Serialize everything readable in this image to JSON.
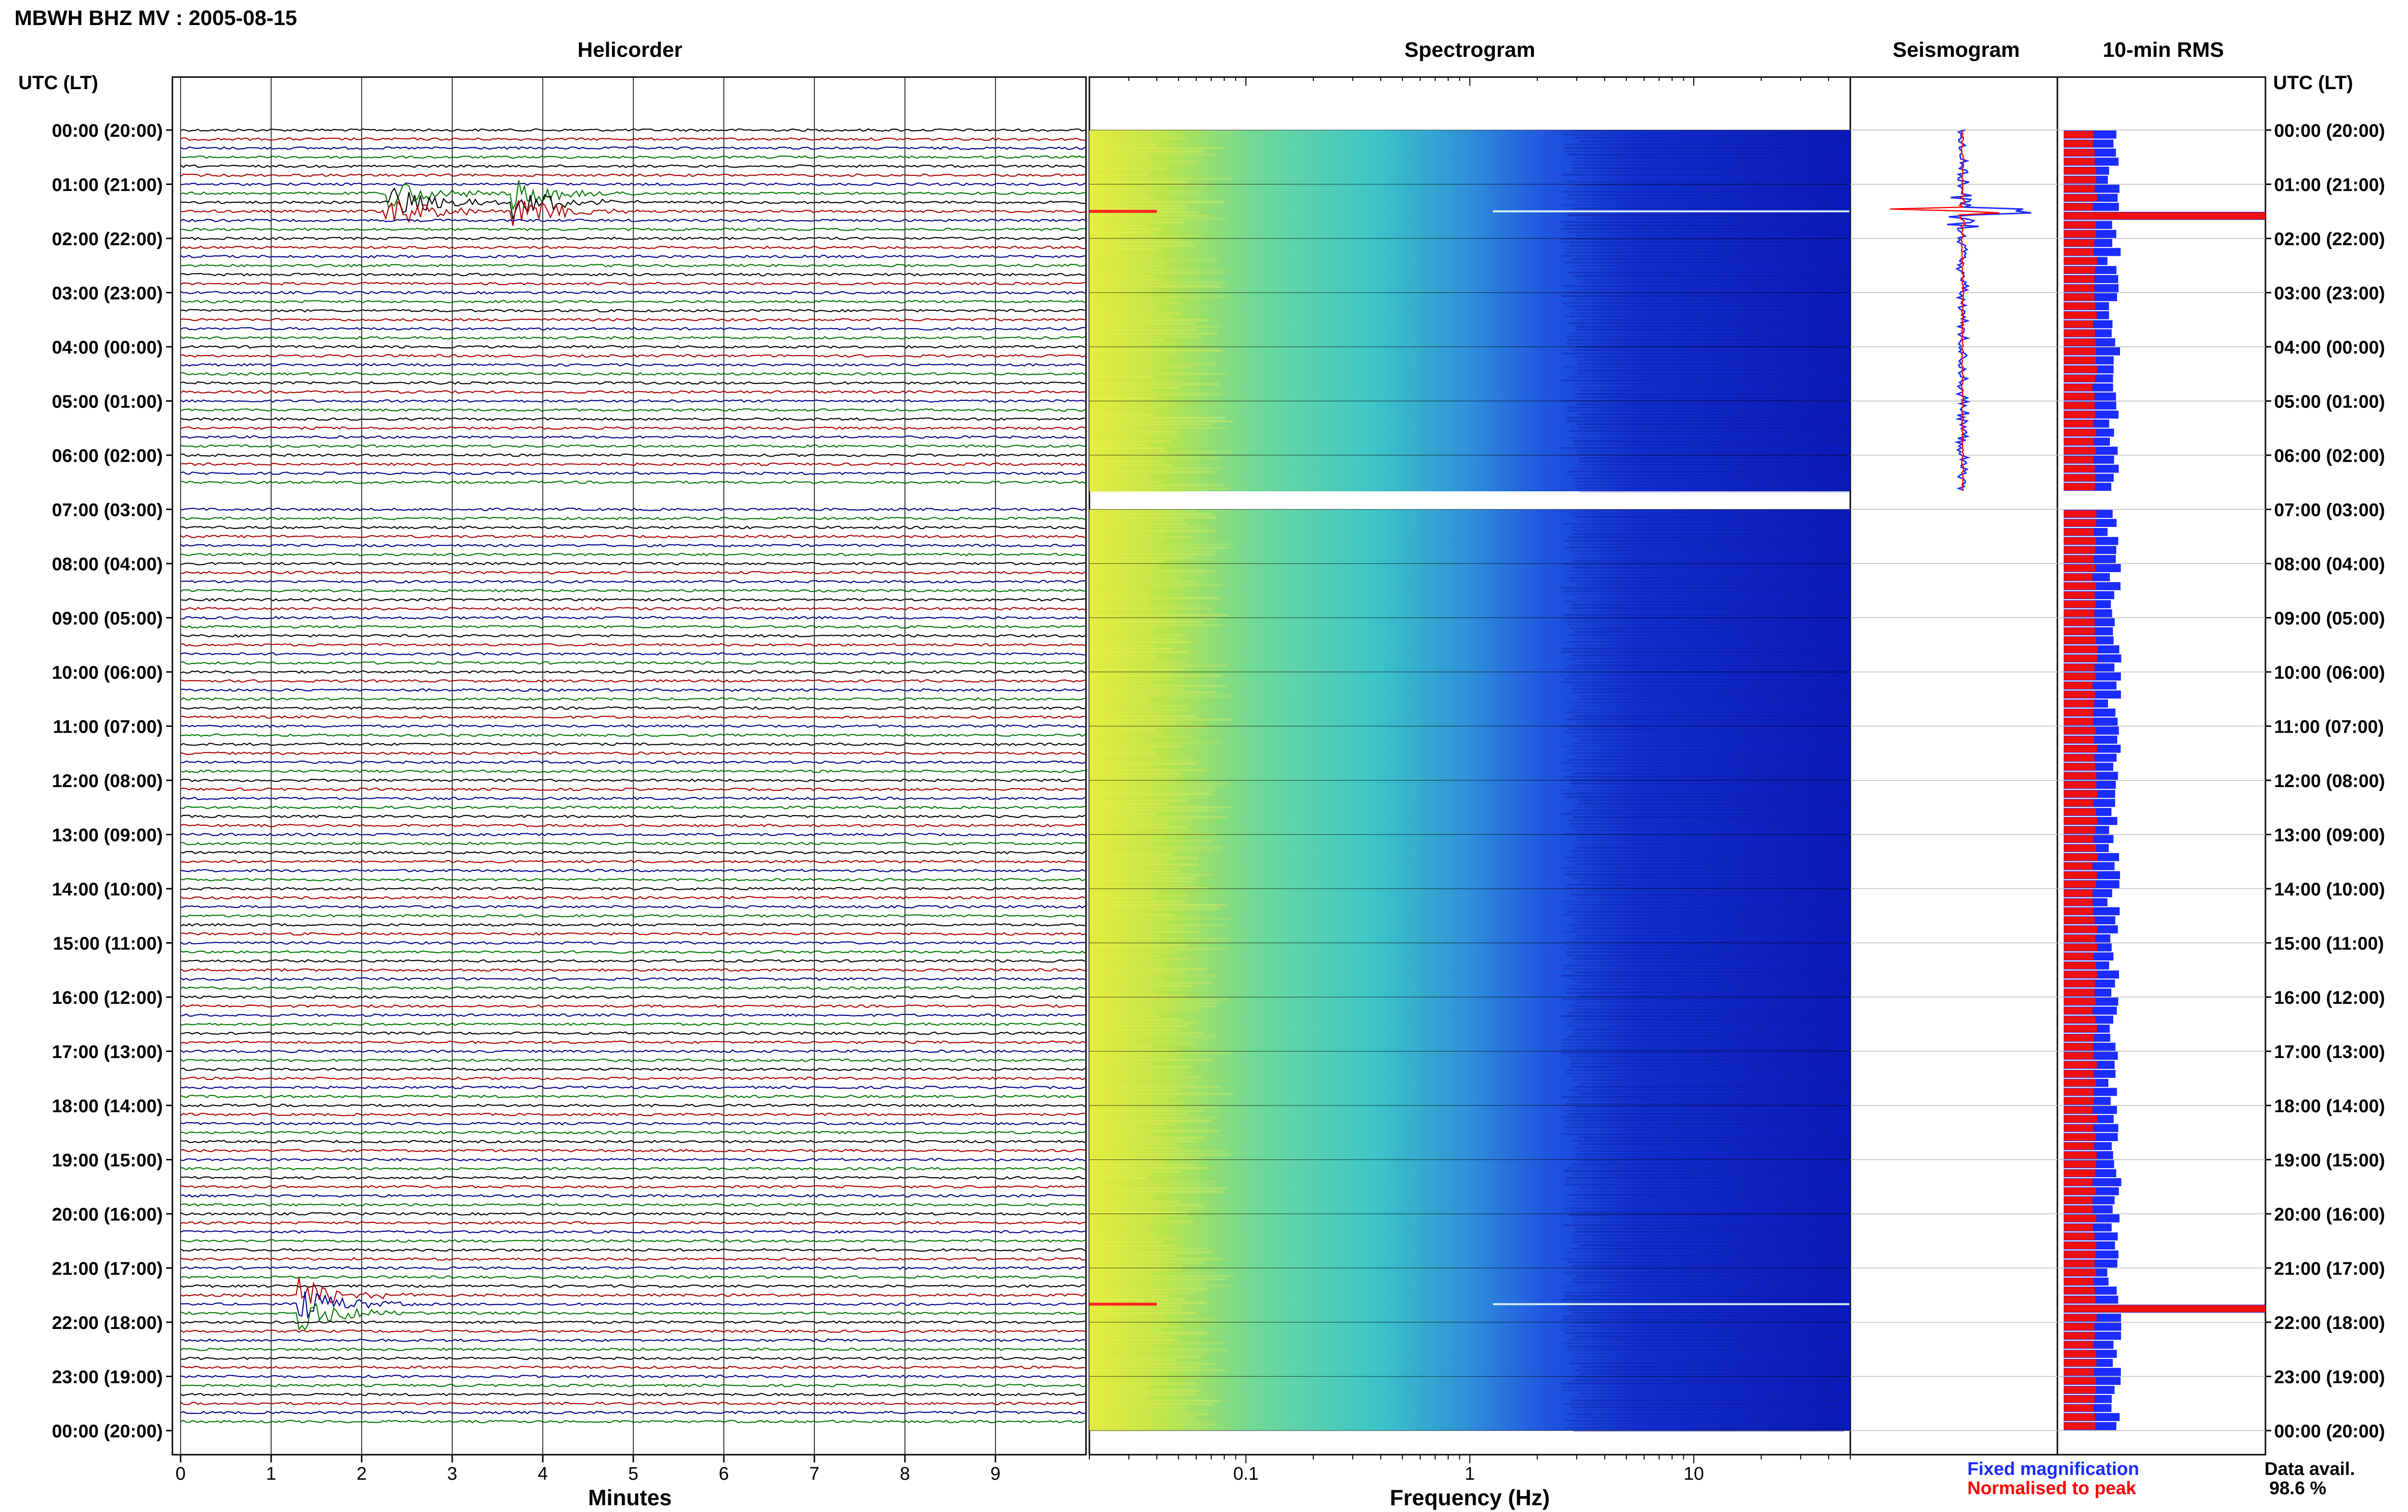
{
  "title": "MBWH BHZ MV : 2005-08-15",
  "panels": {
    "helicorder": "Helicorder",
    "spectrogram": "Spectrogram",
    "seismogram": "Seismogram",
    "rms": "10-min RMS"
  },
  "axis_header": "UTC (LT)",
  "xlabel_minutes": "Minutes",
  "xlabel_frequency": "Frequency (Hz)",
  "legend": {
    "fixed": "Fixed magnification",
    "normalised": "Normalised to peak",
    "fixed_color": "#1a2cff",
    "normalised_color": "#ff0000"
  },
  "availability": {
    "label": "Data avail.",
    "value": "98.6 %"
  },
  "colors": {
    "trace_cycle": [
      "#000000",
      "#b00000",
      "#00008c",
      "#007a00"
    ],
    "spectrogram_low": "#e6ee3a",
    "spectrogram_mid": "#3cc8c8",
    "spectrogram_high": "#0a1ec8"
  },
  "chart_data": [
    {
      "type": "line",
      "name": "helicorder",
      "title": "Helicorder",
      "xlabel": "Minutes",
      "xticks": [
        "0",
        "1",
        "2",
        "3",
        "4",
        "5",
        "6",
        "7",
        "8",
        "9"
      ],
      "xlim": [
        0,
        10
      ],
      "lines_per_hour": 6,
      "data_gap": [
        "06:40",
        "07:00"
      ],
      "hour_labels": [
        "00:00 (20:00)",
        "01:00 (21:00)",
        "02:00 (22:00)",
        "03:00 (23:00)",
        "04:00 (00:00)",
        "05:00 (01:00)",
        "06:00 (02:00)",
        "07:00 (03:00)",
        "08:00 (04:00)",
        "09:00 (05:00)",
        "10:00 (06:00)",
        "11:00 (07:00)",
        "12:00 (08:00)",
        "13:00 (09:00)",
        "14:00 (10:00)",
        "15:00 (11:00)",
        "16:00 (12:00)",
        "17:00 (13:00)",
        "18:00 (14:00)",
        "19:00 (15:00)",
        "20:00 (16:00)",
        "21:00 (17:00)",
        "22:00 (18:00)",
        "23:00 (19:00)",
        "00:00 (20:00)"
      ],
      "events": [
        {
          "time": "01:20",
          "minute": 2.3,
          "note": "large event"
        },
        {
          "time": "01:20",
          "minute": 3.7,
          "note": "large event"
        },
        {
          "time": "21:40",
          "minute": 1.35,
          "note": "large event"
        }
      ]
    },
    {
      "type": "heatmap",
      "name": "spectrogram",
      "title": "Spectrogram",
      "xlabel": "Frequency (Hz)",
      "xscale": "log",
      "xlim": [
        0.02,
        50
      ],
      "xticks": [
        "0.1",
        "1",
        "10"
      ],
      "data_gap": [
        "06:40",
        "07:00"
      ],
      "strong_energy_rows": [
        "01:30",
        "21:40"
      ]
    },
    {
      "type": "line",
      "name": "seismogram",
      "title": "Seismogram",
      "series": [
        {
          "name": "Fixed magnification",
          "color": "#1a2cff"
        },
        {
          "name": "Normalised to peak",
          "color": "#ff0000"
        }
      ],
      "peaks": [
        "01:30",
        "21:40"
      ]
    },
    {
      "type": "bar",
      "name": "rms",
      "title": "10-min RMS",
      "orientation": "horizontal",
      "interval_minutes": 10,
      "peaks": [
        "01:30",
        "21:40"
      ]
    }
  ]
}
